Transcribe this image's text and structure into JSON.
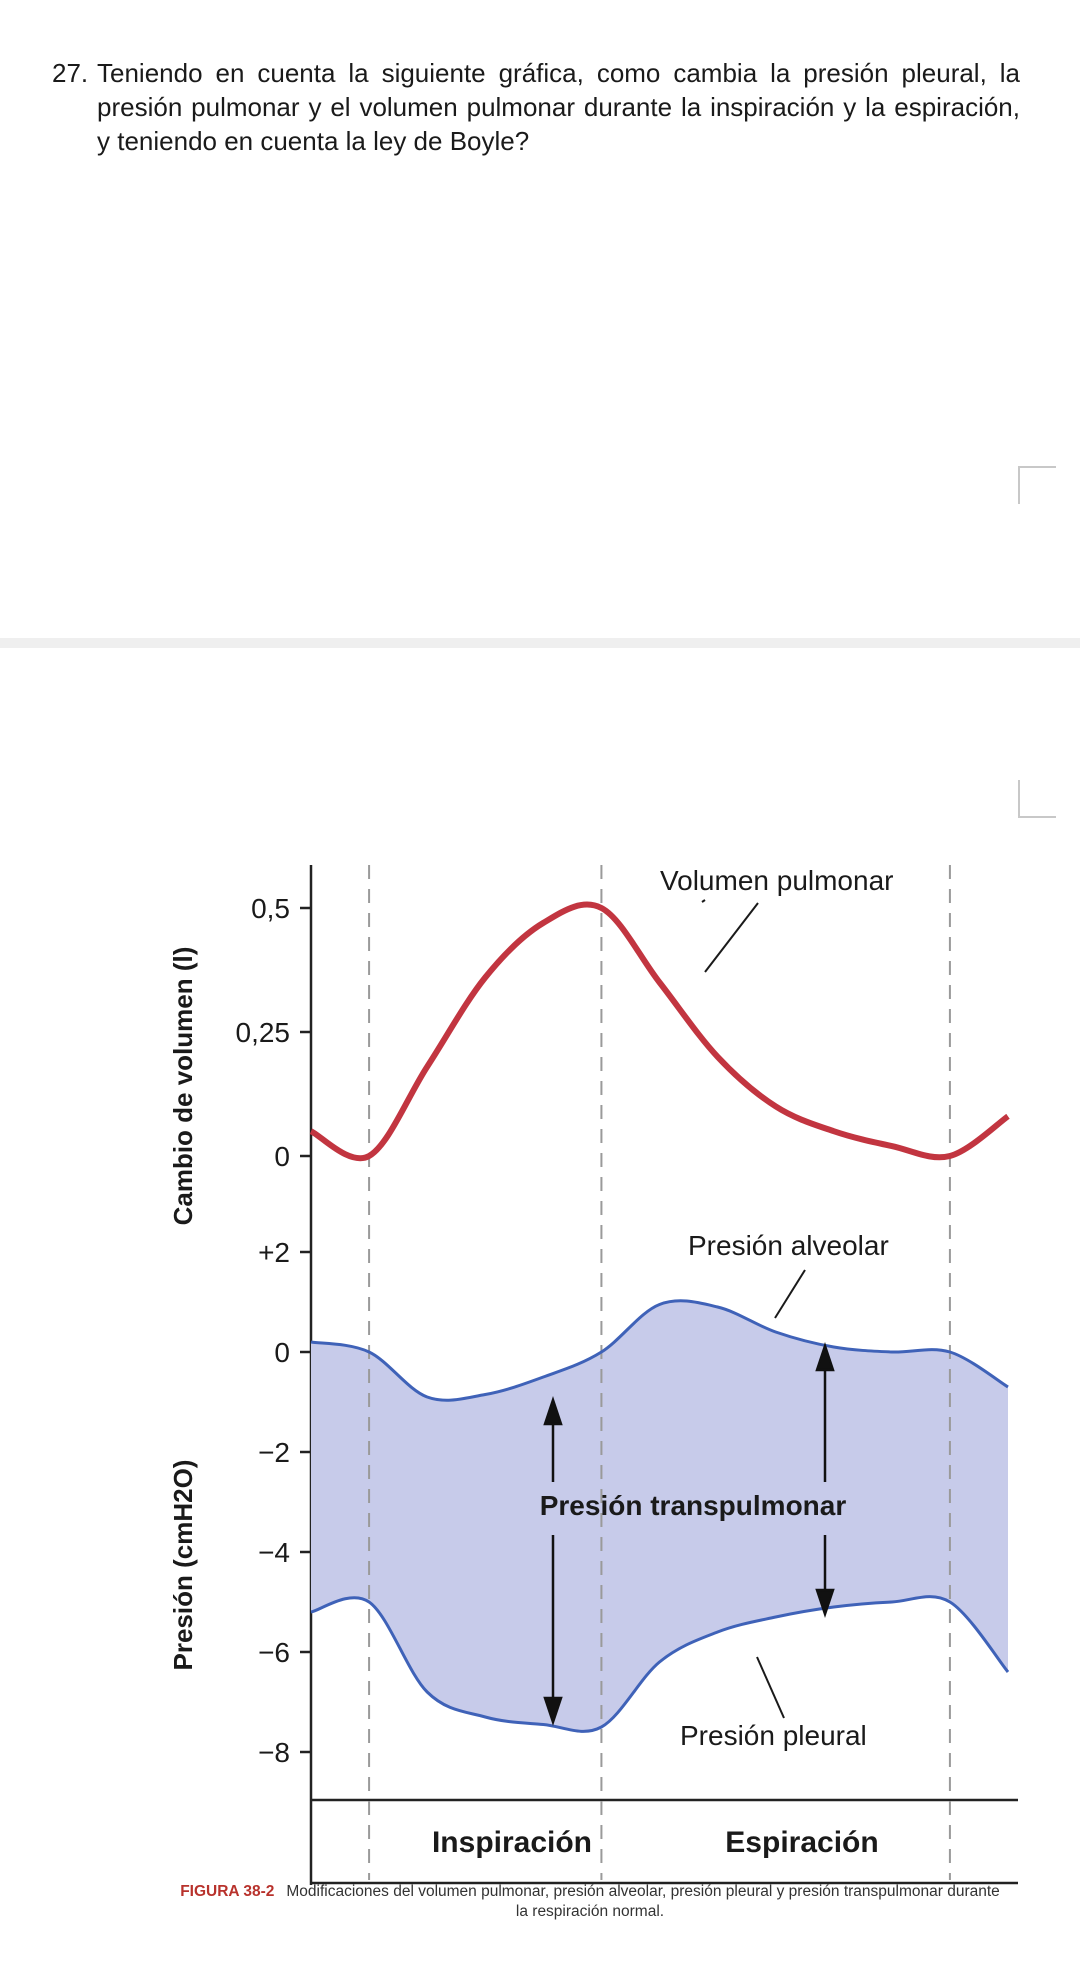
{
  "question": {
    "number": "27.",
    "text": "Teniendo en cuenta la siguiente gráfica, como cambia la presión pleural, la presión pulmonar y el volumen pulmonar durante la inspiración y la espiración, y teniendo en cuenta la ley de Boyle?"
  },
  "chart_data": {
    "type": "line",
    "volume_panel": {
      "ylabel": "Cambio de volumen (l)",
      "yticks": [
        "0,5",
        "0,25",
        "0"
      ],
      "ytick_values": [
        0.5,
        0.25,
        0
      ],
      "ylim": [
        0,
        0.5
      ],
      "series": [
        {
          "name": "Volumen pulmonar",
          "color": "#c23540",
          "x": [
            0,
            0.5,
            1,
            1.5,
            2,
            2.5,
            3,
            3.5,
            4,
            4.5,
            5,
            5.5,
            6
          ],
          "values": [
            0.05,
            0,
            0.18,
            0.36,
            0.47,
            0.5,
            0.35,
            0.2,
            0.1,
            0.05,
            0.02,
            0,
            0.08
          ]
        }
      ]
    },
    "pressure_panel": {
      "ylabel": "Presión (cmH2O)",
      "yticks": [
        "+2",
        "0",
        "−2",
        "−4",
        "−6",
        "−8"
      ],
      "ytick_values": [
        2,
        0,
        -2,
        -4,
        -6,
        -8
      ],
      "ylim": [
        -8,
        2
      ],
      "series": [
        {
          "name": "Presión alveolar",
          "color": "#3f62b8",
          "x": [
            0,
            0.5,
            1,
            1.5,
            2,
            2.5,
            3,
            3.5,
            4,
            4.5,
            5,
            5.5,
            6
          ],
          "values": [
            0.2,
            0,
            -0.9,
            -0.85,
            -0.5,
            0,
            0.95,
            0.9,
            0.4,
            0.1,
            0,
            0,
            -0.7
          ]
        },
        {
          "name": "Presión pleural",
          "color": "#3f62b8",
          "x": [
            0,
            0.5,
            1,
            1.5,
            2,
            2.5,
            3,
            3.5,
            4,
            4.5,
            5,
            5.5,
            6
          ],
          "values": [
            -5.2,
            -5,
            -6.8,
            -7.3,
            -7.45,
            -7.5,
            -6.2,
            -5.6,
            -5.3,
            -5.1,
            -5,
            -5,
            -6.4
          ]
        }
      ],
      "fill_label": "Presión transpulmonar",
      "fill_color": "#c7cbea"
    },
    "phases": [
      "Inspiración",
      "Espiración"
    ],
    "phase_boundaries": [
      0.5,
      2.5,
      5.5
    ],
    "x_max": 6
  },
  "figure": {
    "label": "FIGURA 38-2",
    "caption": "Modificaciones del volumen pulmonar, presión alveolar, presión pleural y presión transpulmonar durante la respiración normal."
  }
}
